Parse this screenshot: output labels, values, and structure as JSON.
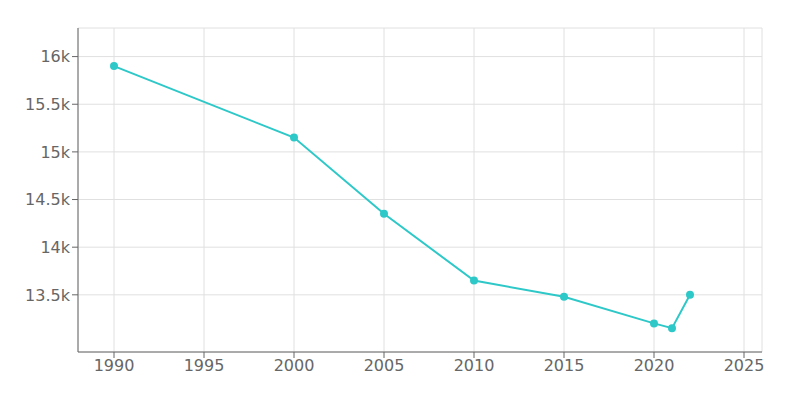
{
  "chart_data": {
    "type": "line",
    "x": [
      1990,
      2000,
      2005,
      2010,
      2015,
      2020,
      2021,
      2022
    ],
    "values": [
      15900,
      15150,
      14350,
      13650,
      13480,
      13200,
      13150,
      13500
    ],
    "color": "#2ec8c8",
    "marker": "circle",
    "xlim": [
      1988,
      2026
    ],
    "ylim": [
      12900,
      16300
    ],
    "xticks": [
      1990,
      1995,
      2000,
      2005,
      2010,
      2015,
      2020,
      2025
    ],
    "yticks": [
      {
        "value": 13500,
        "label": "13.5k"
      },
      {
        "value": 14000,
        "label": "14k"
      },
      {
        "value": 14500,
        "label": "14.5k"
      },
      {
        "value": 15000,
        "label": "15k"
      },
      {
        "value": 15500,
        "label": "15.5k"
      },
      {
        "value": 16000,
        "label": "16k"
      }
    ],
    "grid": true
  }
}
